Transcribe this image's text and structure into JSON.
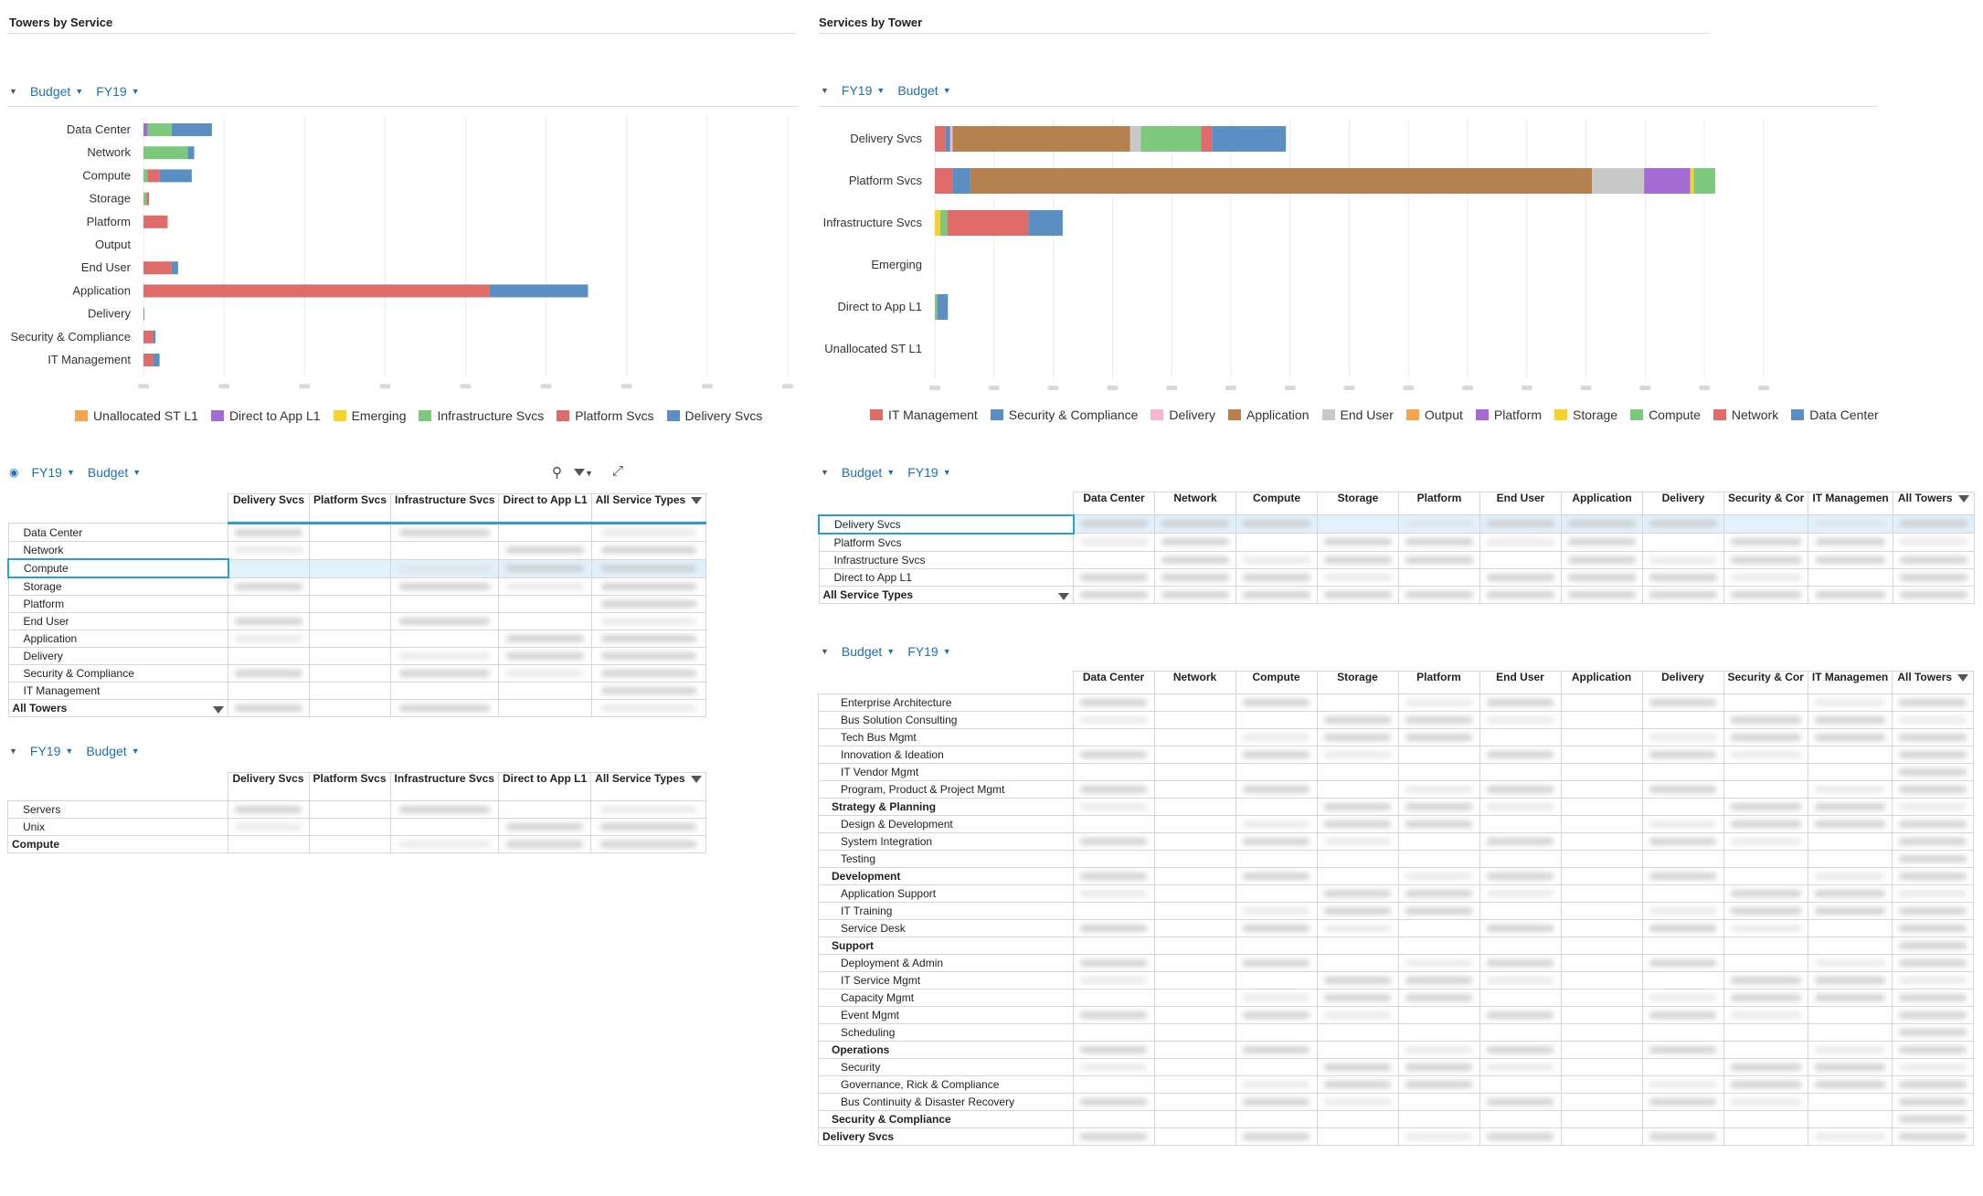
{
  "left_title": "Towers by Service",
  "right_title": "Services by Tower",
  "tbs_controls": {
    "budget": "Budget",
    "fy": "FY19"
  },
  "sbt_controls": {
    "fy": "FY19",
    "budget": "Budget"
  },
  "chart_tbs": {
    "type": "bar",
    "orientation": "horizontal-stacked",
    "categories": [
      "Data Center",
      "Network",
      "Compute",
      "Storage",
      "Platform",
      "Output",
      "End User",
      "Application",
      "Delivery",
      "Security & Compliance",
      "IT Management"
    ],
    "xlim": [
      0,
      800
    ],
    "series": [
      {
        "name": "Unallocated ST L1",
        "color": "#f7a44f",
        "values": [
          0,
          0,
          0,
          0,
          0,
          0,
          0,
          0,
          0,
          0,
          0
        ]
      },
      {
        "name": "Direct to App L1",
        "color": "#a66bd3",
        "values": [
          5,
          0,
          0,
          0,
          0,
          0,
          0,
          0,
          0,
          0,
          0
        ]
      },
      {
        "name": "Emerging",
        "color": "#f5d329",
        "values": [
          0,
          0,
          0,
          0,
          0,
          0,
          0,
          0,
          0,
          0,
          0
        ]
      },
      {
        "name": "Infrastructure Svcs",
        "color": "#7dc87c",
        "values": [
          30,
          55,
          5,
          4,
          0,
          0,
          0,
          0,
          0,
          0,
          0
        ]
      },
      {
        "name": "Platform Svcs",
        "color": "#e06c6a",
        "values": [
          0,
          0,
          15,
          3,
          30,
          0,
          35,
          430,
          0,
          12,
          12
        ]
      },
      {
        "name": "Delivery Svcs",
        "color": "#5b8fc4",
        "values": [
          50,
          8,
          40,
          0,
          0,
          0,
          8,
          122,
          1,
          3,
          8
        ]
      }
    ],
    "legend": "bottom",
    "grid": true
  },
  "chart_sbt": {
    "type": "bar",
    "orientation": "horizontal-stacked",
    "categories": [
      "Delivery Svcs",
      "Platform Svcs",
      "Infrastructure Svcs",
      "Emerging",
      "Direct to App L1",
      "Unallocated ST L1"
    ],
    "xlim": [
      0,
      1400
    ],
    "series": [
      {
        "name": "IT Management",
        "color": "#e06c6a",
        "values": [
          18,
          30,
          0,
          0,
          0,
          0
        ]
      },
      {
        "name": "Security & Compliance",
        "color": "#5b8fc4",
        "values": [
          8,
          30,
          0,
          0,
          0,
          0
        ]
      },
      {
        "name": "Delivery",
        "color": "#f7b6cf",
        "values": [
          4,
          0,
          0,
          0,
          0,
          0
        ]
      },
      {
        "name": "Application",
        "color": "#b5814f",
        "values": [
          300,
          1050,
          0,
          0,
          0,
          0
        ]
      },
      {
        "name": "End User",
        "color": "#c8c8c8",
        "values": [
          18,
          88,
          0,
          0,
          0,
          0
        ]
      },
      {
        "name": "Output",
        "color": "#f7a44f",
        "values": [
          0,
          0,
          0,
          0,
          0,
          0
        ]
      },
      {
        "name": "Platform",
        "color": "#a66bd3",
        "values": [
          0,
          78,
          0,
          0,
          0,
          0
        ]
      },
      {
        "name": "Storage",
        "color": "#f5d329",
        "values": [
          0,
          6,
          9,
          0,
          0,
          0
        ]
      },
      {
        "name": "Compute",
        "color": "#7dc87c",
        "values": [
          102,
          36,
          12,
          0,
          4,
          0
        ]
      },
      {
        "name": "Network",
        "color": "#e06c6a",
        "values": [
          18,
          0,
          137,
          0,
          0,
          0
        ]
      },
      {
        "name": "Data Center",
        "color": "#5b8fc4",
        "values": [
          125,
          0,
          58,
          0,
          18,
          0
        ]
      }
    ],
    "legend": "bottom",
    "grid": true
  },
  "pivot1": {
    "controls": {
      "fy": "FY19",
      "budget": "Budget"
    },
    "headers": [
      "Delivery Svcs",
      "Platform Svcs",
      "Infrastructure Svcs",
      "Direct to App L1",
      "All Service Types"
    ],
    "rows": [
      "Data Center",
      "Network",
      "Compute",
      "Storage",
      "Platform",
      "End User",
      "Application",
      "Delivery",
      "Security & Compliance",
      "IT Management",
      "All Towers"
    ]
  },
  "pivot2": {
    "controls": {
      "fy": "FY19",
      "budget": "Budget"
    },
    "headers": [
      "Delivery Svcs",
      "Platform Svcs",
      "Infrastructure Svcs",
      "Direct to App L1",
      "All Service Types"
    ],
    "rows": [
      "Servers",
      "Unix",
      "Compute"
    ]
  },
  "pivot3": {
    "controls": {
      "budget": "Budget",
      "fy": "FY19"
    },
    "headers": [
      "Data Center",
      "Network",
      "Compute",
      "Storage",
      "Platform",
      "End User",
      "Application",
      "Delivery",
      "Security & Cor",
      "IT Managemen",
      "All Towers"
    ],
    "rows": [
      "Delivery Svcs",
      "Platform Svcs",
      "Infrastructure Svcs",
      "Direct to App L1",
      "All Service Types"
    ]
  },
  "pivot4": {
    "controls": {
      "budget": "Budget",
      "fy": "FY19"
    },
    "headers": [
      "Data Center",
      "Network",
      "Compute",
      "Storage",
      "Platform",
      "End User",
      "Application",
      "Delivery",
      "Security & Cor",
      "IT Managemen",
      "All Towers"
    ],
    "rows": [
      {
        "label": "Enterprise Architecture",
        "level": 2
      },
      {
        "label": "Bus Solution Consulting",
        "level": 2
      },
      {
        "label": "Tech Bus Mgmt",
        "level": 2
      },
      {
        "label": "Innovation & Ideation",
        "level": 2
      },
      {
        "label": "IT Vendor Mgmt",
        "level": 2
      },
      {
        "label": "Program, Product & Project Mgmt",
        "level": 2
      },
      {
        "label": "Strategy & Planning",
        "level": 1
      },
      {
        "label": "Design & Development",
        "level": 2
      },
      {
        "label": "System Integration",
        "level": 2
      },
      {
        "label": "Testing",
        "level": 2
      },
      {
        "label": "Development",
        "level": 1
      },
      {
        "label": "Application Support",
        "level": 2
      },
      {
        "label": "IT Training",
        "level": 2
      },
      {
        "label": "Service Desk",
        "level": 2
      },
      {
        "label": "Support",
        "level": 1
      },
      {
        "label": "Deployment & Admin",
        "level": 2
      },
      {
        "label": "IT Service Mgmt",
        "level": 2
      },
      {
        "label": "Capacity Mgmt",
        "level": 2
      },
      {
        "label": "Event Mgmt",
        "level": 2
      },
      {
        "label": "Scheduling",
        "level": 2
      },
      {
        "label": "Operations",
        "level": 1
      },
      {
        "label": "Security",
        "level": 2
      },
      {
        "label": "Governance, Rick & Compliance",
        "level": 2
      },
      {
        "label": "Bus Continuity & Disaster Recovery",
        "level": 2
      },
      {
        "label": "Security & Compliance",
        "level": 1
      },
      {
        "label": "Delivery Svcs",
        "level": 0
      }
    ]
  }
}
